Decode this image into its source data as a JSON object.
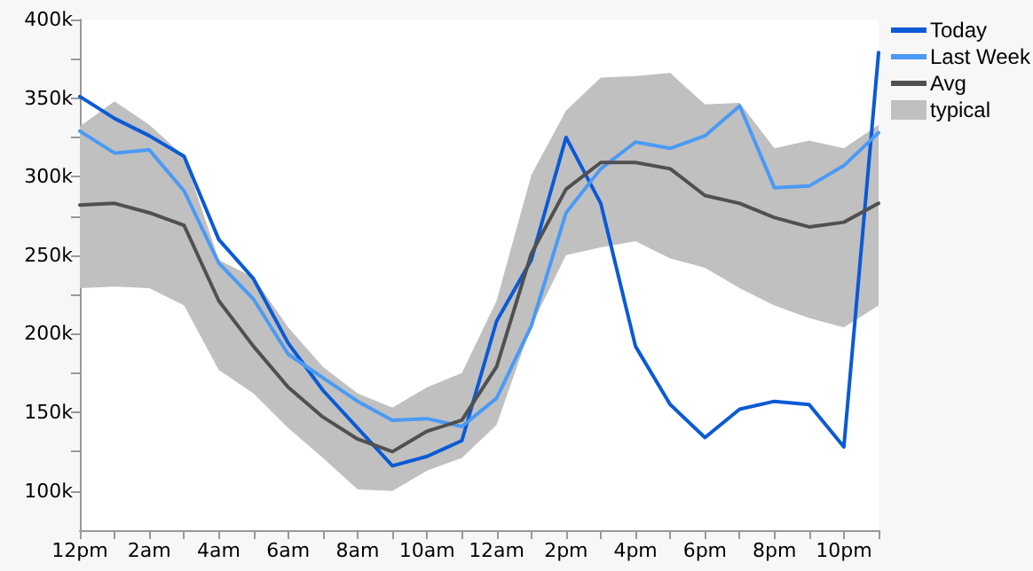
{
  "chart_data": {
    "type": "line",
    "categories": [
      "12pm",
      null,
      "2am",
      null,
      "4am",
      null,
      "6am",
      null,
      "8am",
      null,
      "10am",
      null,
      "12am",
      null,
      "2pm",
      null,
      "4pm",
      null,
      "6pm",
      null,
      "8pm",
      null,
      "10pm",
      null
    ],
    "ylim": [
      75000,
      400000
    ],
    "yticks": [
      {
        "value": 100000,
        "label": "100k"
      },
      {
        "value": 125000,
        "label": null
      },
      {
        "value": 150000,
        "label": "150k"
      },
      {
        "value": 175000,
        "label": null
      },
      {
        "value": 200000,
        "label": "200k"
      },
      {
        "value": 225000,
        "label": null
      },
      {
        "value": 250000,
        "label": "250k"
      },
      {
        "value": 275000,
        "label": null
      },
      {
        "value": 300000,
        "label": "300k"
      },
      {
        "value": 325000,
        "label": null
      },
      {
        "value": 350000,
        "label": "350k"
      },
      {
        "value": 375000,
        "label": null
      },
      {
        "value": 400000,
        "label": "400k"
      }
    ],
    "grid": false,
    "legend": "top right",
    "marker": "none",
    "line_style": "solid",
    "series": [
      {
        "name": "Today",
        "color": "#0a5ad6",
        "values": [
          351000,
          337000,
          326000,
          313000,
          260000,
          235000,
          194000,
          164000,
          140000,
          116000,
          122000,
          132000,
          208000,
          247000,
          325000,
          283000,
          192000,
          155000,
          134000,
          152000,
          157000,
          155000,
          128000,
          379000
        ]
      },
      {
        "name": "Last Week",
        "color": "#4a9af5",
        "values": [
          329000,
          315000,
          317000,
          291000,
          245000,
          222000,
          187000,
          172000,
          157000,
          145000,
          146000,
          141000,
          159000,
          205000,
          277000,
          305000,
          322000,
          318000,
          326000,
          345000,
          293000,
          294000,
          307000,
          328000
        ]
      },
      {
        "name": "Avg",
        "color": "#505050",
        "values": [
          282000,
          283000,
          277000,
          269000,
          221000,
          192000,
          166000,
          147000,
          133000,
          125000,
          138000,
          145000,
          179000,
          251000,
          292000,
          309000,
          309000,
          305000,
          288000,
          283000,
          274000,
          268000,
          271000,
          283000
        ]
      },
      {
        "name": "typical",
        "type": "area",
        "color": "#c0c0c0",
        "values": [
          null,
          null,
          null,
          null,
          null,
          null,
          null,
          null,
          null,
          null,
          null,
          null,
          null,
          null,
          null,
          null,
          null,
          null,
          null,
          null,
          null,
          null,
          null,
          null
        ],
        "upper": [
          332000,
          348000,
          333000,
          313000,
          247000,
          236000,
          204000,
          179000,
          162000,
          153000,
          166000,
          175000,
          221000,
          301000,
          342000,
          363000,
          364000,
          366000,
          346000,
          347000,
          318000,
          323000,
          318000,
          333000
        ],
        "lower": [
          229000,
          230000,
          229000,
          218000,
          177000,
          162000,
          140000,
          121000,
          101000,
          100000,
          113000,
          121000,
          142000,
          205000,
          250000,
          255000,
          259000,
          248000,
          242000,
          229000,
          218000,
          210000,
          204000,
          218000
        ]
      }
    ]
  }
}
